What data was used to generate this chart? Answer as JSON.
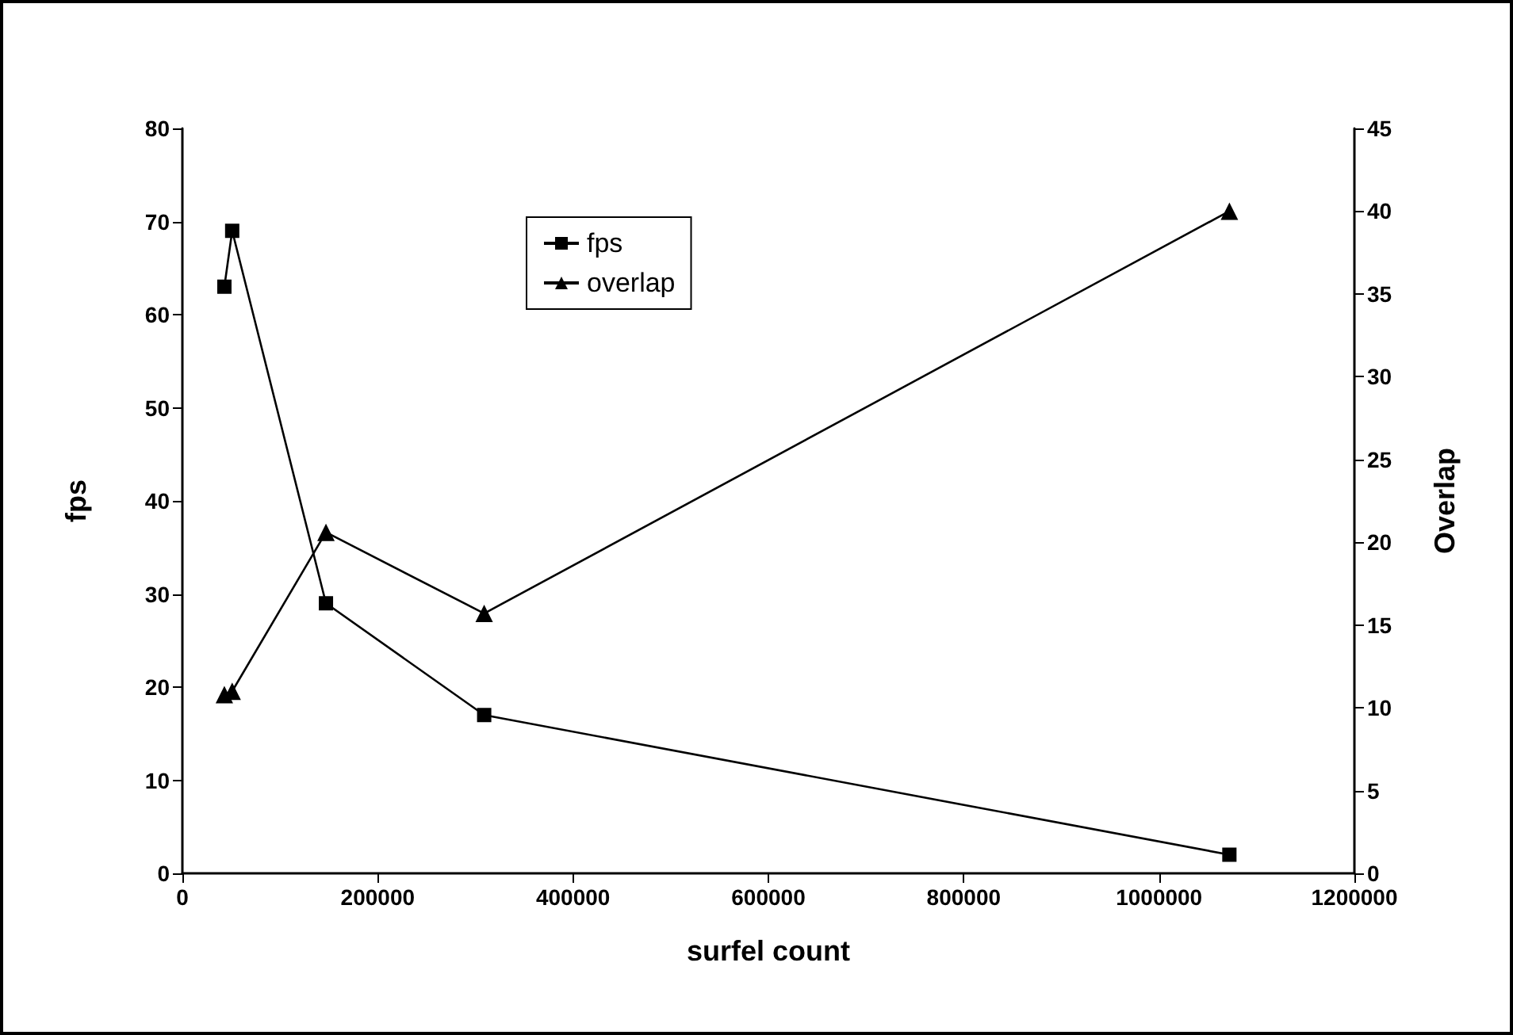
{
  "chart_data": {
    "type": "line",
    "xlabel": "surfel count",
    "ylabel": "fps",
    "y2label": "Overlap",
    "xlim": [
      0,
      1200000
    ],
    "xticks": [
      0,
      200000,
      400000,
      600000,
      800000,
      1000000,
      1200000
    ],
    "ylim": [
      0,
      80
    ],
    "yticks": [
      0,
      10,
      20,
      30,
      40,
      50,
      60,
      70,
      80
    ],
    "y2lim": [
      0,
      45
    ],
    "y2ticks": [
      0,
      5,
      10,
      15,
      20,
      25,
      30,
      35,
      40,
      45
    ],
    "x": [
      43000,
      51000,
      147000,
      309000,
      1072000
    ],
    "series": [
      {
        "name": "fps",
        "color": "#000000",
        "marker": "square",
        "values": [
          63,
          69,
          29,
          17,
          2
        ]
      },
      {
        "name": "overlap",
        "color": "#000000",
        "marker": "triangle",
        "axis": "y2",
        "values": [
          10.8,
          11,
          20.6,
          15.7,
          40
        ]
      }
    ],
    "grid": false,
    "legend": "top",
    "line_style": "solid"
  }
}
